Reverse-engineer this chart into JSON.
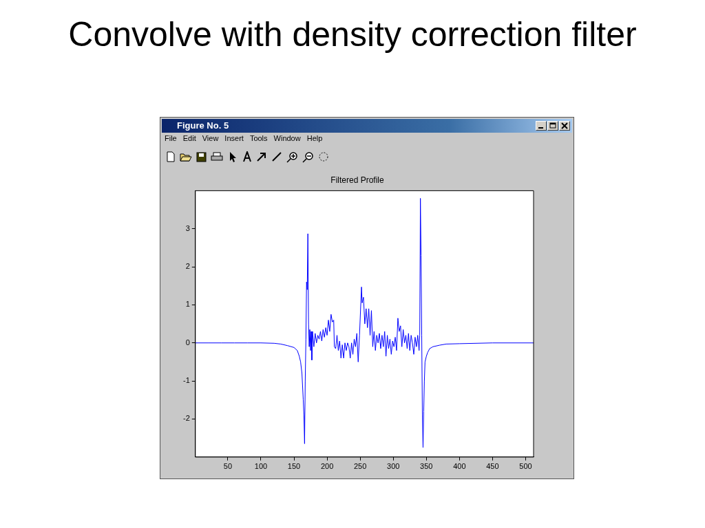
{
  "chart_data": {
    "type": "line",
    "title": "Convolve with density correction filter",
    "subtitle": "Filtered Profile",
    "annotations": [
      "Figure No. 5",
      "File",
      "Edit",
      "View",
      "Insert",
      "Tools",
      "Window",
      "Help"
    ],
    "xlim": [
      1,
      512
    ],
    "ylim": [
      -3,
      4
    ],
    "xticks": [
      50,
      100,
      150,
      200,
      250,
      300,
      350,
      400,
      450,
      500
    ],
    "yticks": [
      -2,
      -1,
      0,
      1,
      2,
      3
    ],
    "marker": "none",
    "line_style": "solid",
    "legend": false,
    "series": [
      {
        "color": "#0000ff",
        "x": [
          1,
          20,
          40,
          60,
          80,
          100,
          120,
          130,
          140,
          150,
          155,
          158,
          160,
          162,
          164,
          165,
          166,
          167,
          168,
          169,
          170,
          171,
          172,
          173,
          174,
          175,
          176,
          177,
          178,
          180,
          182,
          184,
          186,
          188,
          190,
          192,
          194,
          196,
          198,
          200,
          202,
          204,
          206,
          208,
          210,
          211,
          213,
          215,
          217,
          219,
          221,
          223,
          225,
          227,
          229,
          231,
          233,
          235,
          237,
          239,
          241,
          243,
          245,
          247,
          249,
          251,
          252,
          253,
          255,
          257,
          259,
          261,
          263,
          265,
          267,
          269,
          271,
          273,
          275,
          277,
          279,
          281,
          283,
          285,
          287,
          289,
          291,
          293,
          295,
          297,
          299,
          301,
          303,
          305,
          307,
          309,
          311,
          313,
          315,
          317,
          319,
          321,
          323,
          325,
          327,
          329,
          331,
          333,
          335,
          337,
          339,
          340,
          341,
          342,
          343,
          344,
          345,
          346,
          347,
          348,
          350,
          352,
          355,
          360,
          370,
          380,
          400,
          450,
          512
        ],
        "values": [
          0,
          0,
          0,
          0,
          0,
          0,
          -0.01,
          -0.03,
          -0.07,
          -0.12,
          -0.2,
          -0.35,
          -0.5,
          -0.8,
          -1.5,
          -1.9,
          -2.65,
          -1,
          0.1,
          1.6,
          1.4,
          2.87,
          0.5,
          -0.1,
          0.35,
          -0.2,
          0.3,
          -0.45,
          0.3,
          -0.1,
          0.25,
          0,
          0.2,
          0.1,
          0.3,
          0.05,
          0.35,
          0.15,
          0.4,
          0.2,
          0.6,
          0.3,
          0.75,
          0.55,
          0.6,
          -0.1,
          -0.15,
          0.2,
          -0.2,
          0.05,
          -0.4,
          -0.05,
          -0.4,
          0,
          -0.2,
          0,
          -0.1,
          -0.4,
          0,
          -0.3,
          0.1,
          -0.1,
          0.25,
          -0.5,
          0.2,
          1.05,
          1.47,
          1.05,
          1.2,
          0.5,
          0.9,
          0.4,
          0.9,
          0.2,
          0.85,
          -0.1,
          0.3,
          -0.2,
          0.2,
          0,
          0.25,
          -0.15,
          0.2,
          -0.1,
          0.3,
          -0.35,
          0.2,
          -0.15,
          0.1,
          -0.3,
          0.05,
          -0.1,
          0.15,
          -0.2,
          0.65,
          0.3,
          0.45,
          -0.1,
          0.35,
          0,
          0.2,
          -0.15,
          0.25,
          -0.2,
          0.2,
          0,
          -0.3,
          0.15,
          -0.1,
          0.2,
          -0.2,
          0.2,
          3.8,
          2.3,
          0.2,
          -1.9,
          -2.75,
          -1.8,
          -1,
          -0.5,
          -0.35,
          -0.25,
          -0.15,
          -0.1,
          -0.06,
          -0.03,
          -0.02,
          0,
          0
        ]
      }
    ]
  }
}
